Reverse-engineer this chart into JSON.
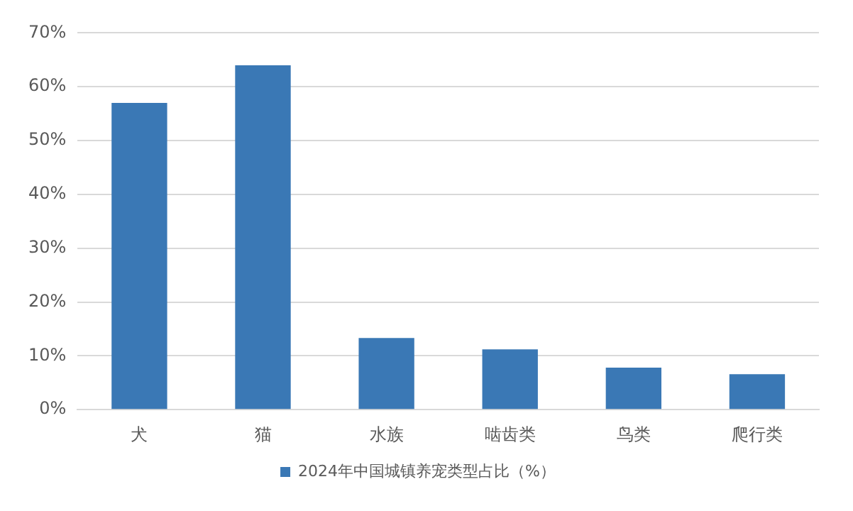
{
  "chart_data": {
    "type": "bar",
    "categories": [
      "犬",
      "猫",
      "水族",
      "啮齿类",
      "鸟类",
      "爬行类"
    ],
    "series": [
      {
        "name": "2024年中国城镇养宠类型占比（%）",
        "color": "#3a78b5",
        "values": [
          57,
          64,
          13.3,
          11.2,
          7.8,
          6.6
        ]
      }
    ],
    "ylim": [
      0,
      70
    ],
    "yticks": [
      {
        "value": 0,
        "label": "0%"
      },
      {
        "value": 10,
        "label": "10%"
      },
      {
        "value": 20,
        "label": "20%"
      },
      {
        "value": 30,
        "label": "30%"
      },
      {
        "value": 40,
        "label": "40%"
      },
      {
        "value": 50,
        "label": "50%"
      },
      {
        "value": 60,
        "label": "60%"
      },
      {
        "value": 70,
        "label": "70%"
      }
    ],
    "grid": "y",
    "legend": "bottom"
  }
}
